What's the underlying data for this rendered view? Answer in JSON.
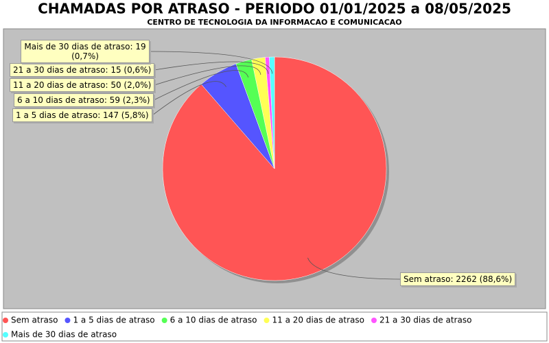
{
  "chart_data": {
    "type": "pie",
    "title": "CHAMADAS POR ATRASO - PERIODO 01/01/2025 a 08/05/2025",
    "subtitle": "CENTRO DE TECNOLOGIA DA INFORMACAO E COMUNICACAO",
    "categories": [
      "Sem atraso",
      "1 a 5 dias de atraso",
      "6 a 10 dias de atraso",
      "11 a 20 dias de atraso",
      "21 a 30 dias de atraso",
      "Mais de 30 dias de atraso"
    ],
    "values": [
      2262,
      147,
      59,
      50,
      15,
      19
    ],
    "value_labels": [
      "Sem atraso: 2262 (88,6%)",
      "1 a 5 dias de atraso: 147 (5,8%)",
      "6 a 10 dias de atraso: 59 (2,3%)",
      "11 a 20 dias de atraso: 50 (2,0%)",
      "21 a 30 dias de atraso: 15 (0,6%)",
      "Mais de 30 dias de atraso: 19 (0,7%)"
    ],
    "colors": [
      "#ff5555",
      "#5555ff",
      "#55ff55",
      "#ffff55",
      "#ff55ff",
      "#55ffff"
    ]
  }
}
